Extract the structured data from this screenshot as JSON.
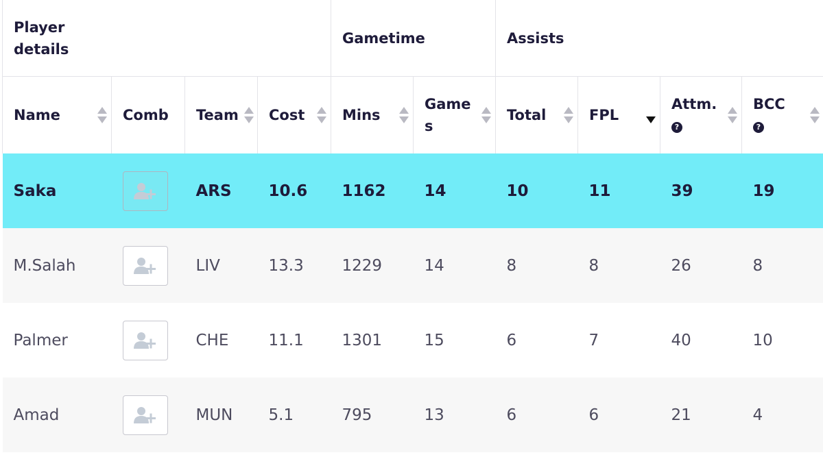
{
  "groups": {
    "player_details": "Player details",
    "gametime": "Gametime",
    "assists": "Assists"
  },
  "columns": {
    "name": "Name",
    "comb": "Comb",
    "team": "Team",
    "cost": "Cost",
    "mins": "Mins",
    "games": "Games",
    "total": "Total",
    "fpl": "FPL",
    "attm": "Attm.",
    "bcc": "BCC",
    "help_glyph": "?"
  },
  "sort": {
    "active_column": "FPL",
    "direction": "descending"
  },
  "colors": {
    "highlight_row": "#72ecf8",
    "stripe_row": "#f7f7f7"
  },
  "rows": [
    {
      "name": "Saka",
      "team": "ARS",
      "cost": "10.6",
      "mins": "1162",
      "games": "14",
      "total": "10",
      "fpl": "11",
      "attm": "39",
      "bcc": "19"
    },
    {
      "name": "M.Salah",
      "team": "LIV",
      "cost": "13.3",
      "mins": "1229",
      "games": "14",
      "total": "8",
      "fpl": "8",
      "attm": "26",
      "bcc": "8"
    },
    {
      "name": "Palmer",
      "team": "CHE",
      "cost": "11.1",
      "mins": "1301",
      "games": "15",
      "total": "6",
      "fpl": "7",
      "attm": "40",
      "bcc": "10"
    },
    {
      "name": "Amad",
      "team": "MUN",
      "cost": "5.1",
      "mins": "795",
      "games": "13",
      "total": "6",
      "fpl": "6",
      "attm": "21",
      "bcc": "4"
    }
  ]
}
